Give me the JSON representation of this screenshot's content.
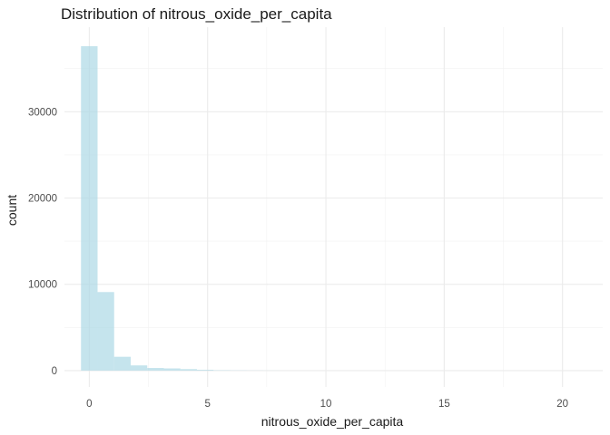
{
  "chart_data": {
    "type": "bar",
    "title": "Distribution of nitrous_oxide_per_capita",
    "xlabel": "nitrous_oxide_per_capita",
    "ylabel": "count",
    "xlim": [
      -1.05,
      21.7
    ],
    "ylim": [
      -1900,
      39800
    ],
    "x_ticks": [
      0,
      5,
      10,
      15,
      20
    ],
    "y_ticks": [
      0,
      10000,
      20000,
      30000
    ],
    "x_tick_labels": [
      "0",
      "5",
      "10",
      "15",
      "20"
    ],
    "y_tick_labels": [
      "0",
      "10000",
      "20000",
      "30000"
    ],
    "grid": true,
    "fill_color": "#add8e6",
    "bins": [
      {
        "x0": -0.35,
        "x1": 0.35,
        "count": 37600
      },
      {
        "x0": 0.35,
        "x1": 1.05,
        "count": 9100
      },
      {
        "x0": 1.05,
        "x1": 1.75,
        "count": 1600
      },
      {
        "x0": 1.75,
        "x1": 2.45,
        "count": 600
      },
      {
        "x0": 2.45,
        "x1": 3.15,
        "count": 300
      },
      {
        "x0": 3.15,
        "x1": 3.85,
        "count": 250
      },
      {
        "x0": 3.85,
        "x1": 4.55,
        "count": 170
      },
      {
        "x0": 4.55,
        "x1": 5.25,
        "count": 90
      },
      {
        "x0": 5.25,
        "x1": 5.95,
        "count": 40
      },
      {
        "x0": 5.95,
        "x1": 6.65,
        "count": 20
      },
      {
        "x0": 6.65,
        "x1": 7.35,
        "count": 10
      },
      {
        "x0": 7.35,
        "x1": 8.05,
        "count": 5
      }
    ]
  }
}
